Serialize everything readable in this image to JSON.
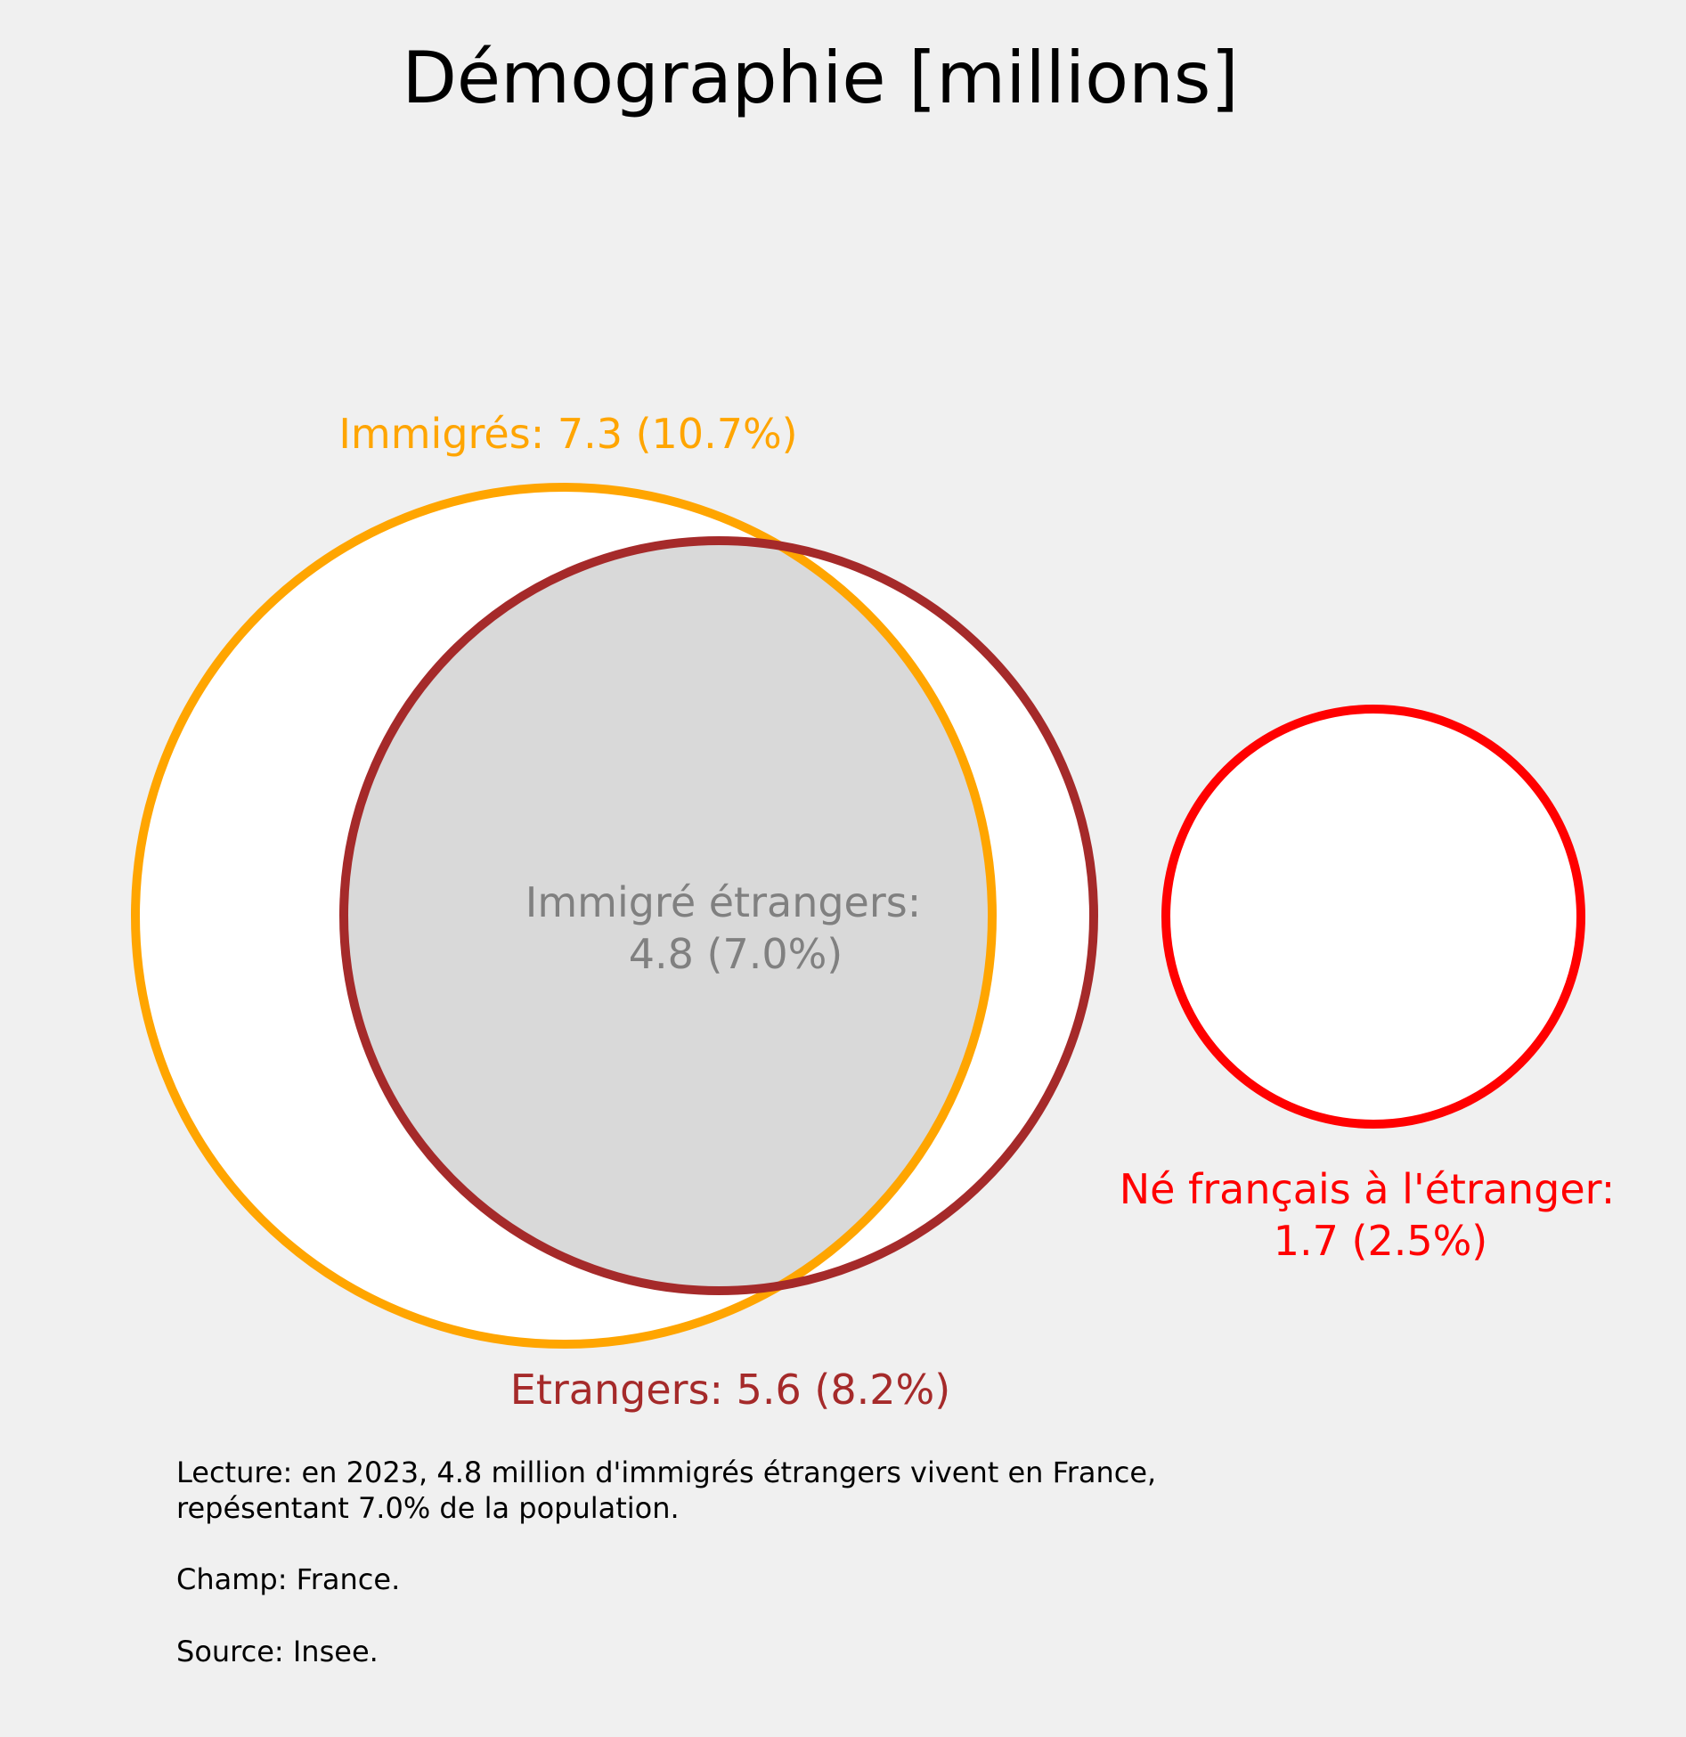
{
  "chart_data": {
    "type": "venn",
    "title": "Démographie [millions]",
    "sets": [
      {
        "key": "immigres",
        "label": "Immigrés: 7.3 (10.7%)",
        "value": 7.3,
        "percent": 10.7,
        "color": "#ffa500"
      },
      {
        "key": "etrangers",
        "label": "Etrangers: 5.6 (8.2%)",
        "value": 5.6,
        "percent": 8.2,
        "color": "#a52a2a"
      },
      {
        "key": "ne_francais",
        "label_line1": "Né français à l'étranger:",
        "label_line2": "1.7 (2.5%)",
        "value": 1.7,
        "percent": 2.5,
        "color": "#ff0000"
      }
    ],
    "intersection": {
      "label_line1": "Immigré étrangers:",
      "label_line2": "4.8 (7.0%)",
      "value": 4.8,
      "percent": 7.0,
      "color": "#808080",
      "fill": "#d9d9d9"
    }
  },
  "footnote": {
    "line1": "Lecture: en 2023, 4.8 million d'immigrés étrangers vivent en France,",
    "line2": "repésentant 7.0% de la population.",
    "champ": "Champ: France.",
    "source": "Source: Insee."
  }
}
